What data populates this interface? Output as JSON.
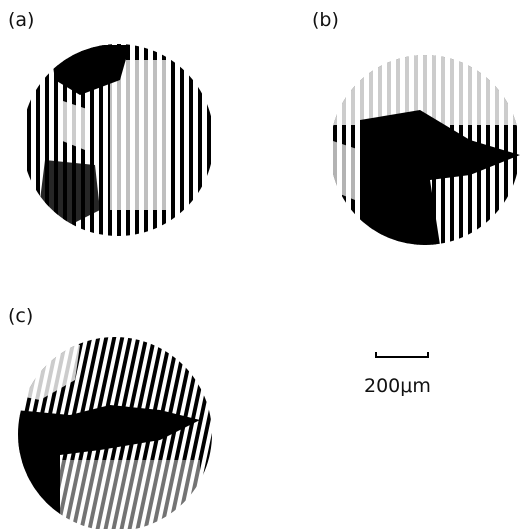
{
  "panels": [
    {
      "label": "(a)"
    },
    {
      "label": "(b)"
    },
    {
      "label": "(c)"
    }
  ],
  "scale_bar": {
    "label": "200μm"
  }
}
